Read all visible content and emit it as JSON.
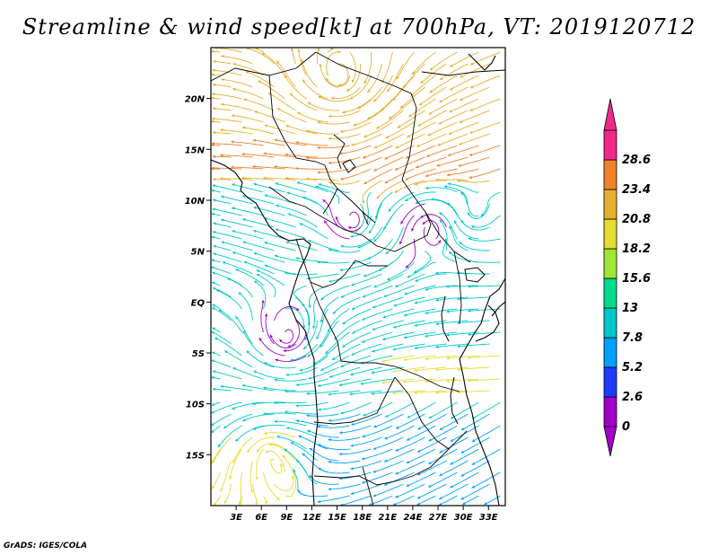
{
  "title": "Streamline & wind speed[kt] at 700hPa, VT: 2019120712",
  "footer": "GrADS: IGES/COLA",
  "map": {
    "lon_range": [
      0,
      35
    ],
    "lat_range": [
      -20,
      25
    ],
    "lat_ticks": [
      {
        "value": 20,
        "label": "20N"
      },
      {
        "value": 15,
        "label": "15N"
      },
      {
        "value": 10,
        "label": "10N"
      },
      {
        "value": 5,
        "label": "5N"
      },
      {
        "value": 0,
        "label": "EQ"
      },
      {
        "value": -5,
        "label": "5S"
      },
      {
        "value": -10,
        "label": "10S"
      },
      {
        "value": -15,
        "label": "15S"
      }
    ],
    "lon_ticks": [
      {
        "value": 3,
        "label": "3E"
      },
      {
        "value": 6,
        "label": "6E"
      },
      {
        "value": 9,
        "label": "9E"
      },
      {
        "value": 12,
        "label": "12E"
      },
      {
        "value": 15,
        "label": "15E"
      },
      {
        "value": 18,
        "label": "18E"
      },
      {
        "value": 21,
        "label": "21E"
      },
      {
        "value": 24,
        "label": "24E"
      },
      {
        "value": 27,
        "label": "27E"
      },
      {
        "value": 30,
        "label": "30E"
      },
      {
        "value": 33,
        "label": "33E"
      }
    ]
  },
  "colorbar": {
    "colors": [
      "#a000c8",
      "#1e3cff",
      "#00a0ff",
      "#00c8c8",
      "#00dc8c",
      "#a0e632",
      "#e6dc32",
      "#e6af2d",
      "#f08228",
      "#f0288c"
    ],
    "labels": [
      "0",
      "2.6",
      "5.2",
      "7.8",
      "13",
      "15.6",
      "18.2",
      "20.8",
      "23.4",
      "28.6"
    ]
  }
}
